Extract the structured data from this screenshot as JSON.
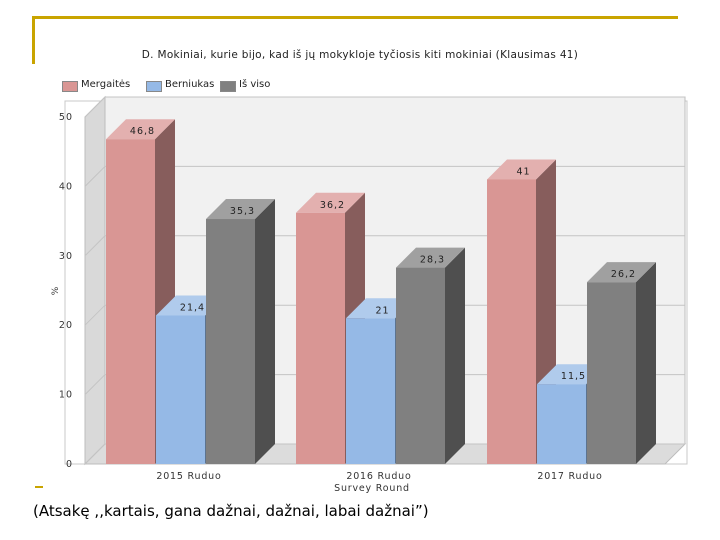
{
  "footnote": "(Atsakę ,,kartais, gana dažnai, dažnai, labai dažnai”)",
  "chart_data": {
    "type": "bar",
    "title": "D. Mokiniai, kurie bijo, kad iš jų mokykloje tyčiosis kiti mokiniai (Klausimas 41)",
    "xlabel": "Survey Round",
    "ylabel": "%",
    "ylim": [
      0,
      50
    ],
    "yticks": [
      0,
      10,
      20,
      30,
      40,
      50
    ],
    "ytick_labels": [
      "0",
      "10",
      "20",
      "30",
      "40",
      "50"
    ],
    "categories": [
      "2015 Ruduo",
      "2016 Ruduo",
      "2017 Ruduo"
    ],
    "series": [
      {
        "name": "Mergaitės",
        "color": "#d99694",
        "values": [
          46.8,
          36.2,
          41
        ],
        "value_labels": [
          "46,8",
          "36,2",
          "41"
        ]
      },
      {
        "name": "Berniukas",
        "color": "#95b9e6",
        "values": [
          21.4,
          21,
          11.5
        ],
        "value_labels": [
          "21,4",
          "21",
          "11,5"
        ]
      },
      {
        "name": "Iš viso",
        "color": "#808080",
        "values": [
          35.3,
          28.3,
          26.2
        ],
        "value_labels": [
          "35,3",
          "28,3",
          "26,2"
        ]
      }
    ],
    "legend_position": "top-left",
    "grid": true,
    "style": "3d"
  }
}
